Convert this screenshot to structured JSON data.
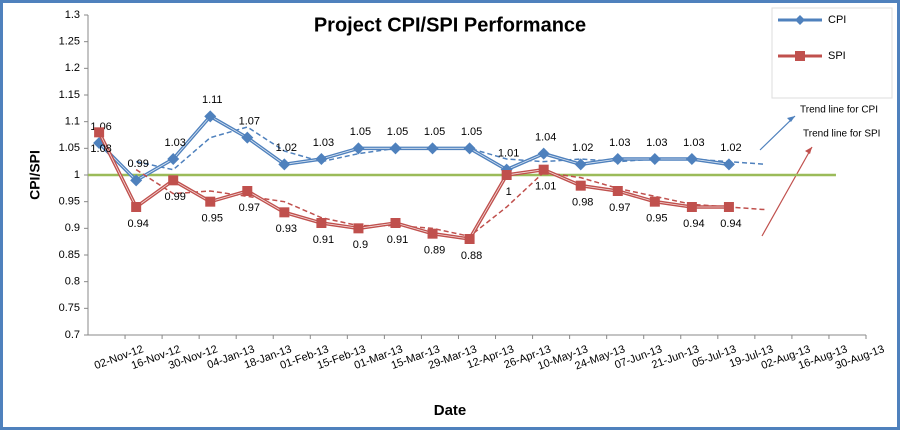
{
  "chart_data": {
    "type": "line",
    "title": "Project CPI/SPI Performance",
    "xlabel": "Date",
    "ylabel": "CPI/SPI",
    "categories": [
      "02-Nov-12",
      "16-Nov-12",
      "30-Nov-12",
      "04-Jan-13",
      "18-Jan-13",
      "01-Feb-13",
      "15-Feb-13",
      "01-Mar-13",
      "15-Mar-13",
      "29-Mar-13",
      "12-Apr-13",
      "26-Apr-13",
      "10-May-13",
      "24-May-13",
      "07-Jun-13",
      "21-Jun-13",
      "05-Jul-13",
      "19-Jul-13",
      "02-Aug-13",
      "16-Aug-13",
      "30-Aug-13"
    ],
    "series": [
      {
        "name": "CPI",
        "color": "#4f81bd",
        "marker": "diamond",
        "label_side": "above",
        "values": [
          1.06,
          0.99,
          1.03,
          1.11,
          1.07,
          1.02,
          1.03,
          1.05,
          1.05,
          1.05,
          1.05,
          1.01,
          1.04,
          1.02,
          1.03,
          1.03,
          1.03,
          1.02,
          null,
          null,
          null
        ],
        "trend": [
          null,
          1.025,
          1.01,
          1.07,
          1.09,
          1.045,
          1.025,
          1.04,
          1.05,
          1.05,
          1.05,
          1.03,
          1.025,
          1.03,
          1.025,
          1.03,
          1.03,
          1.025,
          1.02,
          null,
          null
        ],
        "trend_label": "Trend line for CPI"
      },
      {
        "name": "SPI",
        "color": "#c0504d",
        "marker": "square",
        "label_side": "below",
        "values": [
          1.08,
          0.94,
          0.99,
          0.95,
          0.97,
          0.93,
          0.91,
          0.9,
          0.91,
          0.89,
          0.88,
          1,
          1.01,
          0.98,
          0.97,
          0.95,
          0.94,
          0.94,
          null,
          null,
          null
        ],
        "trend": [
          null,
          1.01,
          0.965,
          0.97,
          0.96,
          0.95,
          0.92,
          0.905,
          0.905,
          0.9,
          0.885,
          0.94,
          1.005,
          0.995,
          0.975,
          0.96,
          0.945,
          0.94,
          0.935,
          null,
          null
        ],
        "trend_label": "Trend line for SPI"
      }
    ],
    "reference_line": {
      "value": 1,
      "color": "#9bbb59"
    },
    "ylim": [
      0.7,
      1.3
    ],
    "yticks": [
      0.7,
      0.75,
      0.8,
      0.85,
      0.9,
      0.95,
      1,
      1.05,
      1.1,
      1.15,
      1.2,
      1.25,
      1.3
    ],
    "grid": false,
    "legend": "top-right"
  }
}
